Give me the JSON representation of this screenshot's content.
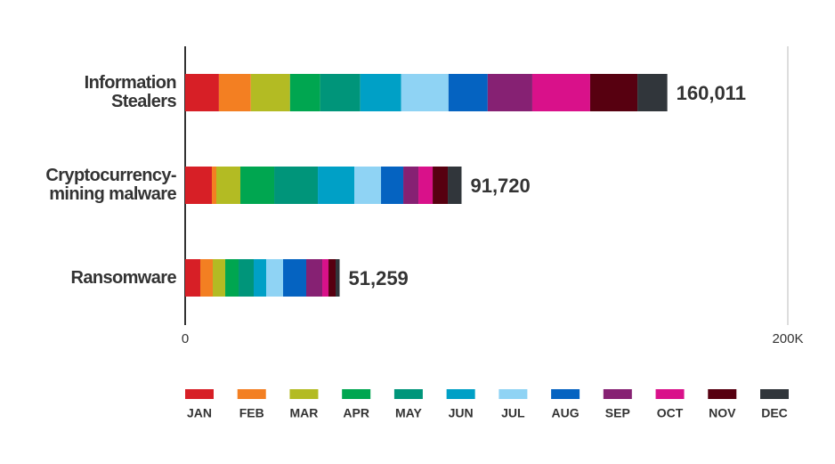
{
  "chart_data": {
    "type": "bar",
    "orientation": "horizontal",
    "stacked": true,
    "categories": [
      "Information Stealers",
      "Cryptocurrency-mining malware",
      "Ransomware"
    ],
    "totals": [
      160011,
      91720,
      51259
    ],
    "value_labels": [
      "160,011",
      "91,720",
      "51,259"
    ],
    "xlim": [
      0,
      200000
    ],
    "xticks": [
      0,
      {
        "value": 200000,
        "label": "200K"
      }
    ],
    "series": [
      {
        "name": "JAN",
        "color": "#d71f26",
        "values": [
          11200,
          8860,
          5020
        ]
      },
      {
        "name": "FEB",
        "color": "#f37f22",
        "values": [
          10600,
          1480,
          4140
        ]
      },
      {
        "name": "MAR",
        "color": "#b3bb23",
        "values": [
          13000,
          7980,
          4140
        ]
      },
      {
        "name": "APR",
        "color": "#00a650",
        "values": [
          10000,
          11230,
          4430
        ]
      },
      {
        "name": "MAY",
        "color": "#00957a",
        "values": [
          13300,
          14480,
          5020
        ]
      },
      {
        "name": "JUN",
        "color": "#00a0c6",
        "values": [
          13600,
          12110,
          4140
        ]
      },
      {
        "name": "JUL",
        "color": "#8fd3f4",
        "values": [
          15700,
          8860,
          5610
        ]
      },
      {
        "name": "AUG",
        "color": "#0563c1",
        "values": [
          13000,
          7390,
          7680
        ]
      },
      {
        "name": "SEP",
        "color": "#862173",
        "values": [
          14800,
          5020,
          5320
        ]
      },
      {
        "name": "OCT",
        "color": "#d9118a",
        "values": [
          19200,
          4730,
          2070
        ]
      },
      {
        "name": "NOV",
        "color": "#570010",
        "values": [
          15700,
          5020,
          2360
        ]
      },
      {
        "name": "DEC",
        "color": "#31363b",
        "values": [
          9911,
          4560,
          1329
        ]
      }
    ]
  }
}
